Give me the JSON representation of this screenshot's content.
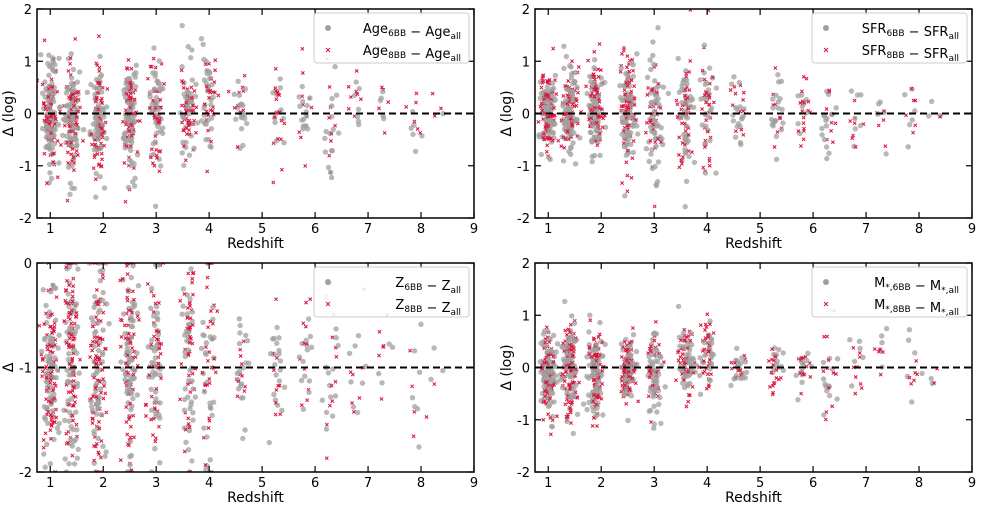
{
  "figure": {
    "colors": {
      "series_6bb": "#a0a0a0",
      "series_8bb": "#dc143c",
      "zero_line": "#000000"
    }
  },
  "chart_data": [
    {
      "type": "scatter",
      "panel": "age",
      "xlabel": "Redshift",
      "ylabel": "Δ (log)",
      "xlim": [
        0.75,
        9
      ],
      "ylim": [
        -2,
        2
      ],
      "xticks": [
        1,
        2,
        3,
        4,
        5,
        6,
        7,
        8,
        9
      ],
      "yticks": [
        -2,
        -1,
        0,
        1,
        2
      ],
      "reference_line_y": 0,
      "legend_position": "top-right",
      "series": [
        {
          "name": "6BB",
          "legend": {
            "a": "Age",
            "a_sub": "6BB",
            "op": " − ",
            "b": "Age",
            "b_sub": "all"
          },
          "marker": "circle",
          "color": "#a0a0a0"
        },
        {
          "name": "8BB",
          "legend": {
            "a": "Age",
            "a_sub": "8BB",
            "op": " − ",
            "b": "Age",
            "b_sub": "all"
          },
          "marker": "x",
          "color": "#dc143c"
        }
      ],
      "clusters": [
        [
          1.0,
          0,
          0.55,
          160
        ],
        [
          1.4,
          -0.1,
          0.55,
          160
        ],
        [
          1.9,
          -0.1,
          0.5,
          150
        ],
        [
          2.5,
          0,
          0.5,
          150
        ],
        [
          3.0,
          0,
          0.55,
          90
        ],
        [
          3.6,
          0.1,
          0.45,
          90
        ],
        [
          4.0,
          0.2,
          0.5,
          60
        ],
        [
          4.6,
          0.1,
          0.35,
          30
        ],
        [
          5.3,
          0,
          0.45,
          30
        ],
        [
          5.8,
          0,
          0.45,
          25
        ],
        [
          6.3,
          -0.3,
          0.6,
          25
        ],
        [
          6.8,
          0.2,
          0.35,
          15
        ],
        [
          7.3,
          0.1,
          0.35,
          10
        ],
        [
          7.9,
          0.1,
          0.5,
          12
        ],
        [
          8.3,
          -0.1,
          0.2,
          4
        ]
      ]
    },
    {
      "type": "scatter",
      "panel": "sfr",
      "xlabel": "Redshift",
      "ylabel": "Δ (log)",
      "xlim": [
        0.75,
        9
      ],
      "ylim": [
        -2,
        2
      ],
      "xticks": [
        1,
        2,
        3,
        4,
        5,
        6,
        7,
        8,
        9
      ],
      "yticks": [
        -2,
        -1,
        0,
        1,
        2
      ],
      "reference_line_y": 0,
      "legend_position": "top-right",
      "series": [
        {
          "name": "6BB",
          "legend": {
            "a": "SFR",
            "a_sub": "6BB",
            "op": " − ",
            "b": "SFR",
            "b_sub": "all"
          },
          "marker": "circle",
          "color": "#a0a0a0"
        },
        {
          "name": "8BB",
          "legend": {
            "a": "SFR",
            "a_sub": "8BB",
            "op": " − ",
            "b": "SFR",
            "b_sub": "all"
          },
          "marker": "x",
          "color": "#dc143c"
        }
      ],
      "clusters": [
        [
          1.0,
          0.05,
          0.35,
          160
        ],
        [
          1.4,
          0,
          0.45,
          160
        ],
        [
          1.9,
          0.05,
          0.45,
          150
        ],
        [
          2.5,
          0.1,
          0.6,
          150
        ],
        [
          3.0,
          -0.1,
          0.6,
          90
        ],
        [
          3.6,
          0,
          0.6,
          90
        ],
        [
          4.0,
          0,
          0.55,
          60
        ],
        [
          4.6,
          0,
          0.3,
          30
        ],
        [
          5.3,
          0,
          0.4,
          30
        ],
        [
          5.8,
          0,
          0.4,
          25
        ],
        [
          6.3,
          -0.2,
          0.45,
          25
        ],
        [
          6.8,
          0,
          0.35,
          15
        ],
        [
          7.3,
          0,
          0.25,
          10
        ],
        [
          7.9,
          0,
          0.35,
          12
        ],
        [
          8.3,
          0.1,
          0.15,
          4
        ]
      ]
    },
    {
      "type": "scatter",
      "panel": "metallicity",
      "xlabel": "Redshift",
      "ylabel": "Δ",
      "xlim": [
        0.75,
        9
      ],
      "ylim": [
        -2,
        0
      ],
      "xticks": [
        1,
        2,
        3,
        4,
        5,
        6,
        7,
        8,
        9
      ],
      "yticks": [
        -2,
        -1,
        0
      ],
      "reference_line_y": -1,
      "legend_position": "top-right",
      "series": [
        {
          "name": "6BB",
          "legend": {
            "a": "Z",
            "a_sub": "6BB",
            "op": " − ",
            "b": "Z",
            "b_sub": "all"
          },
          "marker": "circle",
          "color": "#a0a0a0"
        },
        {
          "name": "8BB",
          "legend": {
            "a": "Z",
            "a_sub": "8BB",
            "op": " − ",
            "b": "Z",
            "b_sub": "all"
          },
          "marker": "x",
          "color": "#dc143c"
        }
      ],
      "clusters": [
        [
          1.0,
          -1,
          0.45,
          160
        ],
        [
          1.4,
          -0.9,
          0.55,
          160
        ],
        [
          1.9,
          -0.95,
          0.5,
          150
        ],
        [
          2.5,
          -0.9,
          0.5,
          150
        ],
        [
          3.0,
          -1,
          0.5,
          90
        ],
        [
          3.6,
          -0.95,
          0.45,
          90
        ],
        [
          4.0,
          -1,
          0.45,
          60
        ],
        [
          4.6,
          -1,
          0.3,
          30
        ],
        [
          5.3,
          -1,
          0.35,
          30
        ],
        [
          5.8,
          -0.9,
          0.4,
          25
        ],
        [
          6.3,
          -1,
          0.45,
          25
        ],
        [
          6.8,
          -0.9,
          0.35,
          15
        ],
        [
          7.3,
          -1.1,
          0.35,
          10
        ],
        [
          7.9,
          -1.1,
          0.45,
          12
        ],
        [
          8.3,
          -1,
          0.15,
          4
        ]
      ]
    },
    {
      "type": "scatter",
      "panel": "stellar-mass",
      "xlabel": "Redshift",
      "ylabel": "Δ (log)",
      "xlim": [
        0.75,
        9
      ],
      "ylim": [
        -2,
        2
      ],
      "xticks": [
        1,
        2,
        3,
        4,
        5,
        6,
        7,
        8,
        9
      ],
      "yticks": [
        -2,
        -1,
        0,
        1,
        2
      ],
      "reference_line_y": 0,
      "legend_position": "top-right",
      "series": [
        {
          "name": "6BB",
          "legend": {
            "a": "M",
            "a_sub": "*,6BB",
            "op": " − ",
            "b": "M",
            "b_sub": "*,all"
          },
          "marker": "circle",
          "color": "#a0a0a0"
        },
        {
          "name": "8BB",
          "legend": {
            "a": "M",
            "a_sub": "*,8BB",
            "op": " − ",
            "b": "M",
            "b_sub": "*,all"
          },
          "marker": "x",
          "color": "#dc143c"
        }
      ],
      "clusters": [
        [
          1.0,
          -0.15,
          0.45,
          160
        ],
        [
          1.4,
          -0.1,
          0.45,
          160
        ],
        [
          1.9,
          -0.1,
          0.4,
          150
        ],
        [
          2.5,
          0,
          0.3,
          150
        ],
        [
          3.0,
          -0.1,
          0.4,
          90
        ],
        [
          3.6,
          0.1,
          0.3,
          90
        ],
        [
          4.0,
          0.2,
          0.4,
          60
        ],
        [
          4.6,
          0,
          0.2,
          30
        ],
        [
          5.3,
          0,
          0.2,
          30
        ],
        [
          5.8,
          0,
          0.25,
          25
        ],
        [
          6.3,
          -0.4,
          0.45,
          25
        ],
        [
          6.8,
          0.1,
          0.3,
          15
        ],
        [
          7.3,
          0.2,
          0.3,
          10
        ],
        [
          7.9,
          0,
          0.35,
          12
        ],
        [
          8.3,
          -0.2,
          0.15,
          4
        ]
      ]
    }
  ]
}
